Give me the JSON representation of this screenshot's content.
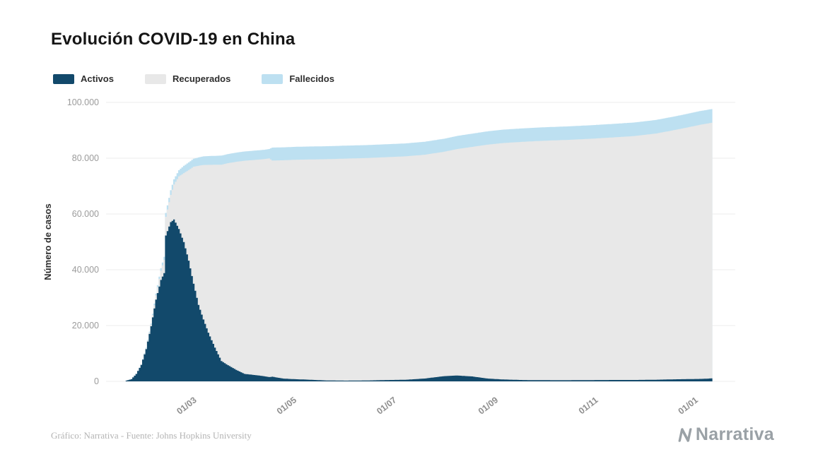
{
  "page": {
    "title": "Evolución COVID-19 en China"
  },
  "legend": {
    "items": [
      {
        "label": "Activos",
        "color": "#12496b"
      },
      {
        "label": "Recuperados",
        "color": "#e8e8e8"
      },
      {
        "label": "Fallecidos",
        "color": "#bde0f1"
      }
    ]
  },
  "footer": {
    "credit": "Gráfico: Narrativa - Fuente: Johns Hopkins University",
    "brand": "Narrativa"
  },
  "chart_data": {
    "type": "area",
    "stacked": true,
    "title": "Evolución COVID-19 en China",
    "xlabel": "",
    "ylabel": "Número de casos",
    "ylim": [
      0,
      100000
    ],
    "grid": "horizontal",
    "grid_color": "#ececec",
    "legend_position": "top-left",
    "yticks": [
      0,
      20000,
      40000,
      60000,
      80000,
      100000
    ],
    "ytick_labels": [
      "0",
      "20.000",
      "40.000",
      "60.000",
      "80.000",
      "100.000"
    ],
    "xticks": [
      {
        "date": "2020-03-01",
        "label": "01/03"
      },
      {
        "date": "2020-05-01",
        "label": "01/05"
      },
      {
        "date": "2020-07-01",
        "label": "01/07"
      },
      {
        "date": "2020-09-01",
        "label": "01/09"
      },
      {
        "date": "2020-11-01",
        "label": "01/11"
      },
      {
        "date": "2021-01-01",
        "label": "01/01"
      }
    ],
    "x_domain": [
      "2020-01-08",
      "2021-01-26"
    ],
    "x": [
      "2020-01-20",
      "2020-01-23",
      "2020-01-26",
      "2020-01-29",
      "2020-02-01",
      "2020-02-04",
      "2020-02-07",
      "2020-02-10",
      "2020-02-12",
      "2020-02-13",
      "2020-02-16",
      "2020-02-18",
      "2020-02-21",
      "2020-02-24",
      "2020-02-27",
      "2020-03-01",
      "2020-03-04",
      "2020-03-07",
      "2020-03-10",
      "2020-03-14",
      "2020-03-18",
      "2020-03-22",
      "2020-03-27",
      "2020-04-01",
      "2020-04-07",
      "2020-04-13",
      "2020-04-16",
      "2020-04-18",
      "2020-04-25",
      "2020-05-03",
      "2020-05-12",
      "2020-05-22",
      "2020-06-02",
      "2020-06-14",
      "2020-06-26",
      "2020-07-08",
      "2020-07-20",
      "2020-08-01",
      "2020-08-09",
      "2020-08-18",
      "2020-08-27",
      "2020-09-05",
      "2020-09-18",
      "2020-10-01",
      "2020-10-15",
      "2020-10-29",
      "2020-11-12",
      "2020-11-25",
      "2020-12-08",
      "2020-12-18",
      "2020-12-28",
      "2021-01-05",
      "2021-01-12"
    ],
    "series": [
      {
        "name": "Activos",
        "color": "#12496b",
        "values": [
          280,
          790,
          2660,
          5900,
          11540,
          19770,
          29300,
          36360,
          38800,
          52270,
          57090,
          58020,
          54600,
          49930,
          43260,
          35000,
          27430,
          22180,
          17440,
          12100,
          7260,
          5790,
          4120,
          2680,
          2290,
          1860,
          1550,
          1660,
          980,
          760,
          560,
          310,
          260,
          300,
          470,
          570,
          1020,
          1880,
          2100,
          1760,
          1030,
          700,
          480,
          420,
          410,
          460,
          500,
          500,
          590,
          720,
          810,
          890,
          1080
        ]
      },
      {
        "name": "Recuperados",
        "color": "#e8e8e8",
        "values": [
          30,
          34,
          56,
          110,
          250,
          500,
          1540,
          3280,
          4740,
          6730,
          9750,
          12550,
          18860,
          24730,
          32500,
          41960,
          49860,
          55400,
          60180,
          65540,
          70420,
          72440,
          74590,
          76410,
          77080,
          77800,
          78400,
          77500,
          78280,
          78700,
          79000,
          79350,
          79600,
          79750,
          79880,
          80080,
          80230,
          80450,
          81200,
          82300,
          83800,
          84700,
          85400,
          85850,
          86150,
          86500,
          86950,
          87450,
          88250,
          89200,
          90300,
          91200,
          91700
        ]
      },
      {
        "name": "Fallecidos",
        "color": "#bde0f1",
        "values": [
          6,
          26,
          80,
          132,
          259,
          426,
          638,
          910,
          1115,
          1370,
          1665,
          1870,
          2240,
          2600,
          2745,
          2870,
          2980,
          3070,
          3140,
          3200,
          3245,
          3270,
          3295,
          3320,
          3335,
          3345,
          3350,
          4636,
          4642,
          4644,
          4645,
          4645,
          4645,
          4646,
          4648,
          4650,
          4655,
          4670,
          4700,
          4740,
          4775,
          4805,
          4820,
          4830,
          4838,
          4843,
          4848,
          4855,
          4865,
          4880,
          4895,
          4910,
          4925
        ]
      }
    ]
  }
}
